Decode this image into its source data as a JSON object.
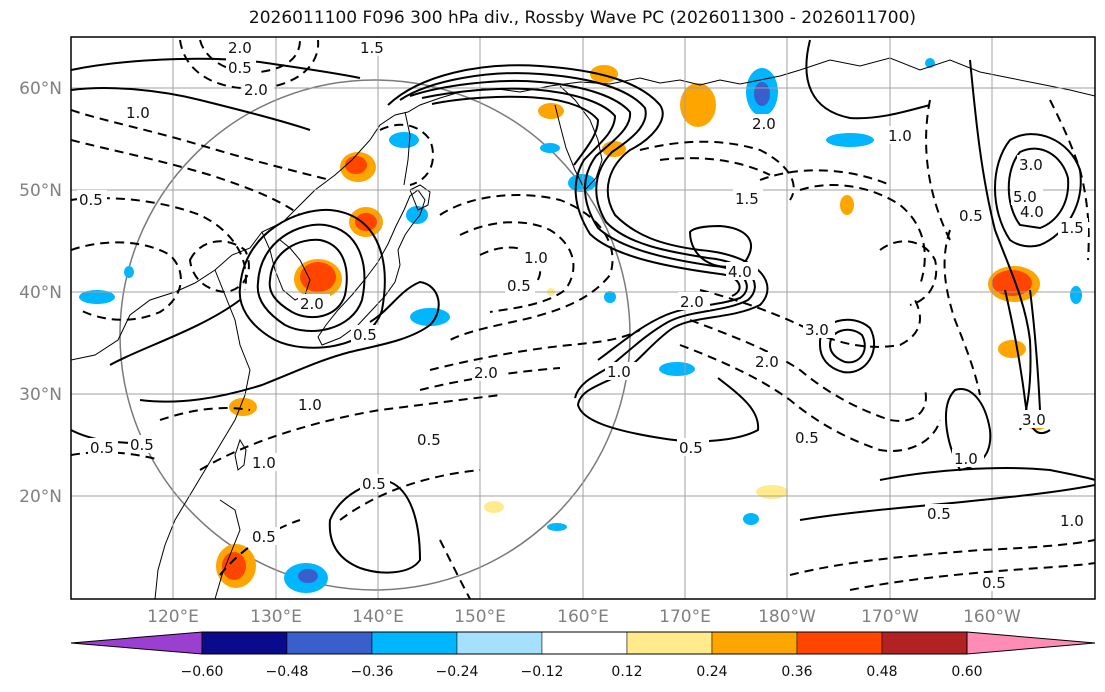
{
  "title": "2026011100 F096 300 hPa div., Rossby Wave PC (2026011300 - 2026011700)",
  "map": {
    "lat_labels": [
      "60°N",
      "50°N",
      "40°N",
      "30°N",
      "20°N"
    ],
    "lon_labels": [
      "120°E",
      "130°E",
      "140°E",
      "150°E",
      "160°E",
      "170°E",
      "180°W",
      "170°W",
      "160°W"
    ],
    "contour_labels": [
      "2.0",
      "1.5",
      "0.5",
      "1.0",
      "0.5",
      "2.0",
      "2.0",
      "0.5",
      "1.0",
      "0.5",
      "3.0",
      "5.0",
      "4.0",
      "1.5",
      "0.5",
      "2.0",
      "4.0",
      "2.0",
      "1.0",
      "3.0",
      "2.0",
      "0.5",
      "1.0",
      "0.5",
      "1.0",
      "0.5",
      "2.0",
      "1.0",
      "0.5",
      "0.5",
      "0.5",
      "0.5",
      "1.0",
      "0.5",
      "1.5",
      "1.0",
      "3.0",
      "0.5"
    ]
  },
  "colorbar": {
    "tick_labels": [
      "−0.60",
      "−0.48",
      "−0.36",
      "−0.24",
      "−0.12",
      "0.12",
      "0.24",
      "0.36",
      "0.48",
      "0.60"
    ],
    "colors": [
      "#9a3fd0",
      "#0a0a8c",
      "#3a5fcd",
      "#00b6ff",
      "#a6e0ff",
      "#ffffff",
      "#ffeb8c",
      "#ffa500",
      "#ff4500",
      "#b22222",
      "#ff8cb4"
    ]
  },
  "colors": {
    "frame": "#000000",
    "grid": "#a0a0a0",
    "ticklabel": "#808080",
    "contour": "#000000"
  }
}
